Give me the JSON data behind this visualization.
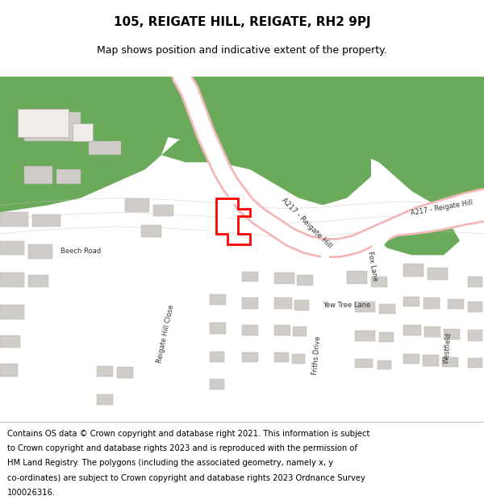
{
  "title": "105, REIGATE HILL, REIGATE, RH2 9PJ",
  "subtitle": "Map shows position and indicative extent of the property.",
  "footer_lines": [
    "Contains OS data © Crown copyright and database right 2021. This information is subject",
    "to Crown copyright and database rights 2023 and is reproduced with the permission of",
    "HM Land Registry. The polygons (including the associated geometry, namely x, y",
    "co-ordinates) are subject to Crown copyright and database rights 2023 Ordnance Survey",
    "100026316."
  ],
  "bg_color": "#f0ede8",
  "map_bg": "#f0ede8",
  "road_main_color": "#f2b8b8",
  "road_minor_color": "#ffffff",
  "green_color": "#6aaa5a",
  "building_color": "#d0ccc8",
  "building_outline": "#b0aca8",
  "red_polygon_color": "#ff0000",
  "title_fontsize": 11,
  "subtitle_fontsize": 9,
  "footer_fontsize": 7.2
}
